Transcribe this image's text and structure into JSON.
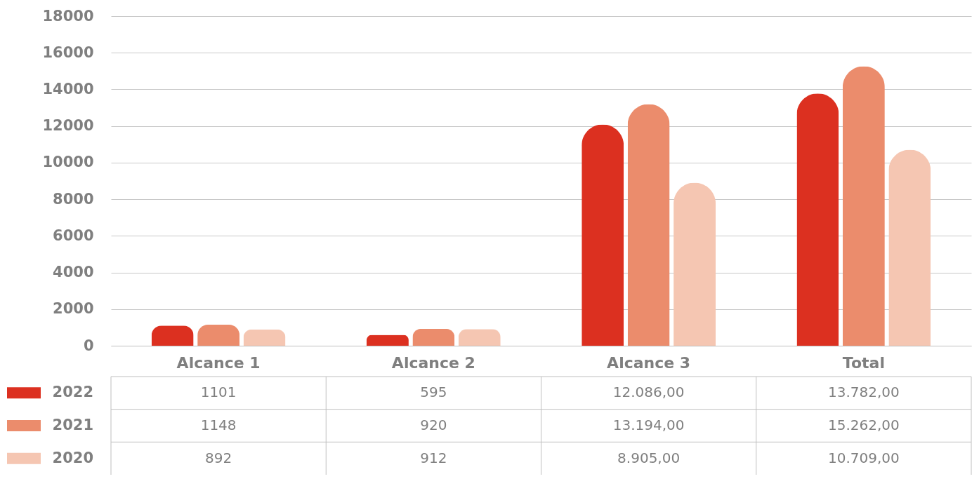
{
  "chart_data": {
    "type": "bar",
    "categories": [
      "Alcance 1",
      "Alcance 2",
      "Alcance 3",
      "Total"
    ],
    "series": [
      {
        "name": "2022",
        "color": "#dc3020",
        "values": [
          1101,
          595,
          12086,
          13782
        ],
        "value_labels": [
          "1101",
          "595",
          "12.086,00",
          "13.782,00"
        ]
      },
      {
        "name": "2021",
        "color": "#eb8c6c",
        "values": [
          1148,
          920,
          13194,
          15262
        ],
        "value_labels": [
          "1148",
          "920",
          "13.194,00",
          "15.262,00"
        ]
      },
      {
        "name": "2020",
        "color": "#f5c6b2",
        "values": [
          892,
          912,
          8905,
          10709
        ],
        "value_labels": [
          "892",
          "912",
          "8.905,00",
          "10.709,00"
        ]
      }
    ],
    "ylim": [
      0,
      18000
    ],
    "yticks": [
      0,
      2000,
      4000,
      6000,
      8000,
      10000,
      12000,
      14000,
      16000,
      18000
    ],
    "grid": "y",
    "legend": "bottom"
  }
}
